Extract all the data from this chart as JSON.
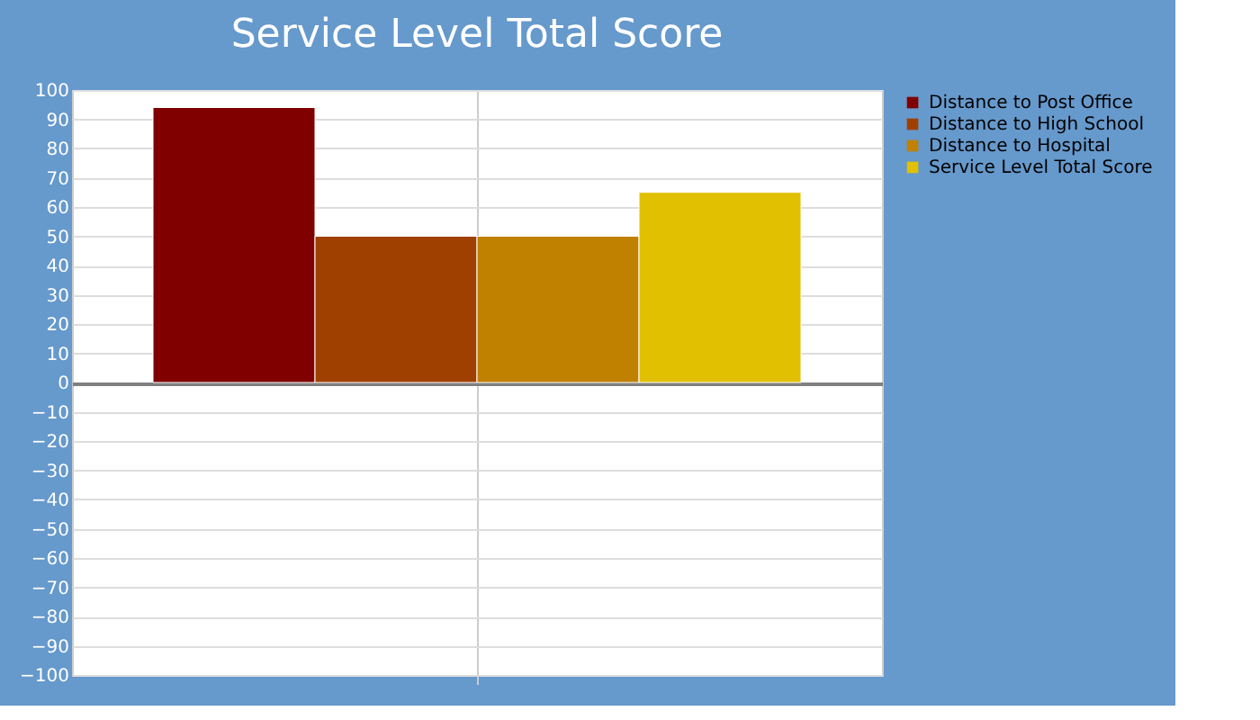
{
  "chart_data": {
    "type": "bar",
    "title": "Service Level Total Score",
    "categories": [
      null
    ],
    "series": [
      {
        "name": "Distance to Post Office",
        "color": "#800000",
        "values": [
          94
        ]
      },
      {
        "name": "Distance to High School",
        "color": "#a04000",
        "values": [
          50
        ]
      },
      {
        "name": "Distance to Hospital",
        "color": "#c08000",
        "values": [
          50
        ]
      },
      {
        "name": "Service Level Total Score",
        "color": "#e0c000",
        "values": [
          65
        ]
      }
    ],
    "ylim": [
      -100,
      100
    ],
    "yticks": [
      -100,
      -90,
      -80,
      -70,
      -60,
      -50,
      -40,
      -30,
      -20,
      -10,
      0,
      10,
      20,
      30,
      40,
      50,
      60,
      70,
      80,
      90,
      100
    ],
    "grid": true,
    "legend": "right"
  }
}
